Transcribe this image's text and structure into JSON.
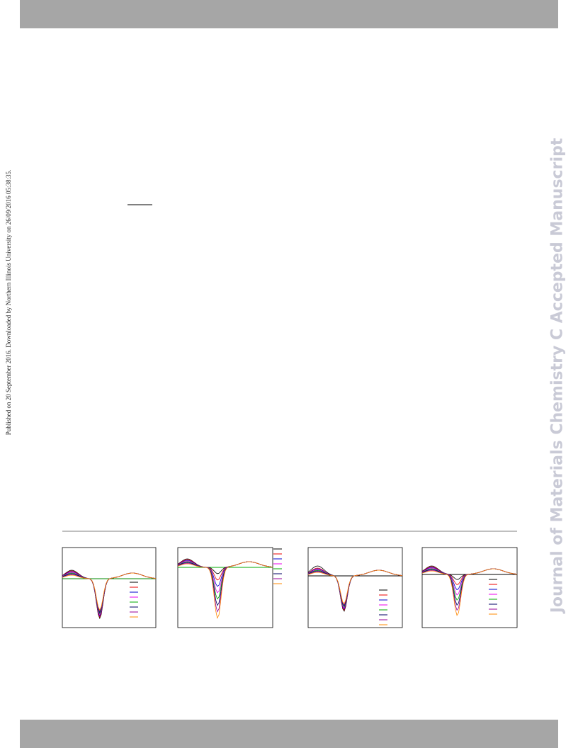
{
  "sidebar": {
    "journal": "Journal of Materials Chemistry C Accepted Manuscript"
  },
  "margin_note": "Published on 20 September 2016. Downloaded by Northern Illinois University on 26/09/2016 05:38:35."
}
